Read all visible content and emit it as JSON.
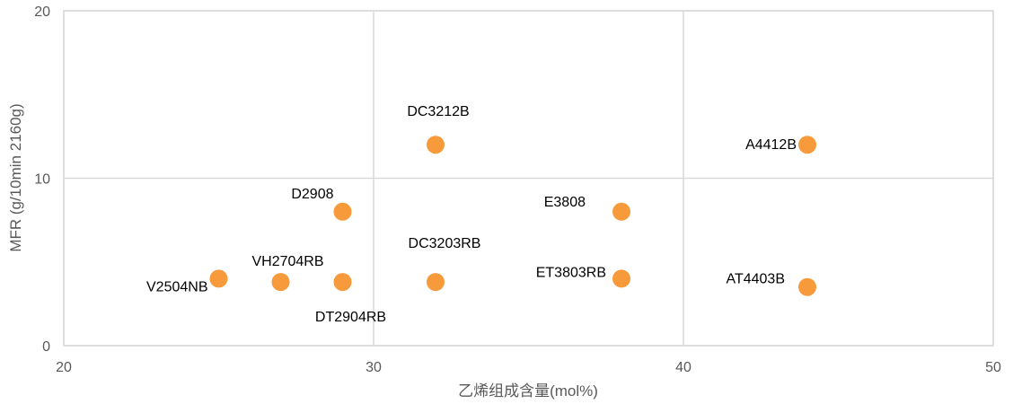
{
  "chart_data": {
    "type": "scatter",
    "title": "",
    "xlabel": "乙烯组成含量(mol%)",
    "ylabel": "MFR (g/10min 2160g)",
    "xlim": [
      20,
      50
    ],
    "ylim": [
      0,
      20
    ],
    "x_ticks": [
      20,
      30,
      40,
      50
    ],
    "y_ticks": [
      0,
      10,
      20
    ],
    "grid": true,
    "marker_color": "#F79A3B",
    "points": [
      {
        "label": "V2504NB",
        "x": 25,
        "y": 4.0
      },
      {
        "label": "VH2704RB",
        "x": 27,
        "y": 3.8
      },
      {
        "label": "D2908",
        "x": 29,
        "y": 8.0
      },
      {
        "label": "DT2904RB",
        "x": 29,
        "y": 3.8
      },
      {
        "label": "DC3212B",
        "x": 32,
        "y": 12.0
      },
      {
        "label": "DC3203RB",
        "x": 32,
        "y": 3.8
      },
      {
        "label": "E3808",
        "x": 38,
        "y": 8.0
      },
      {
        "label": "ET3803RB",
        "x": 38,
        "y": 4.0
      },
      {
        "label": "A4412B",
        "x": 44,
        "y": 12.0
      },
      {
        "label": "AT4403B",
        "x": 44,
        "y": 3.5
      }
    ]
  }
}
